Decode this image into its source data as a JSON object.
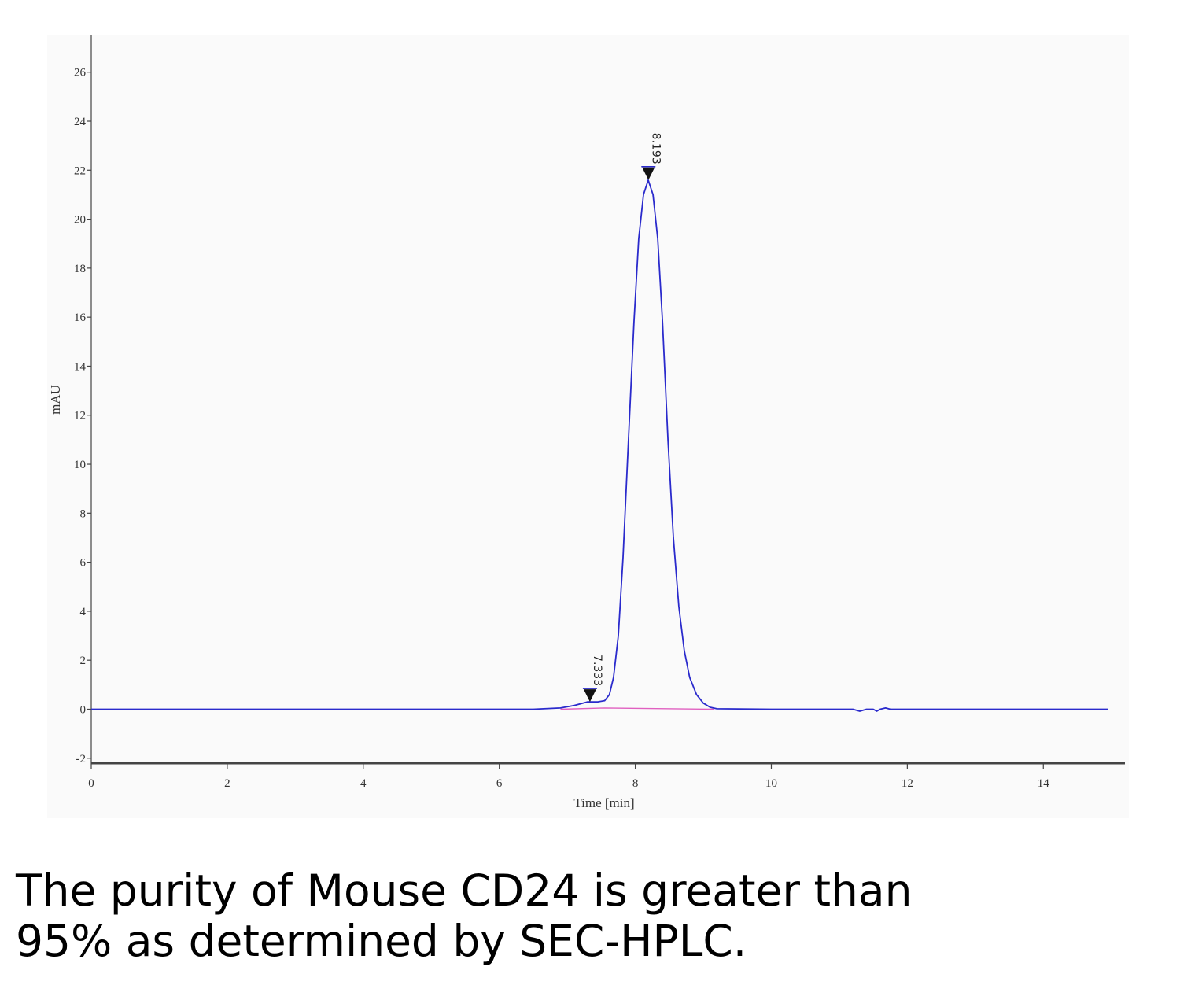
{
  "chart_data": {
    "type": "line",
    "xlabel": "Time [min]",
    "ylabel": "mAU",
    "xlim": [
      0,
      15.2
    ],
    "ylim": [
      -2.2,
      27.5
    ],
    "x_ticks": [
      0,
      2,
      4,
      6,
      8,
      10,
      12,
      14
    ],
    "y_ticks": [
      -2,
      0,
      2,
      4,
      6,
      8,
      10,
      12,
      14,
      16,
      18,
      20,
      22,
      24,
      26
    ],
    "grid": false,
    "series": [
      {
        "color": "#2a2acc",
        "x": [
          0,
          5.0,
          6.5,
          6.9,
          7.1,
          7.3,
          7.45,
          7.55,
          7.62,
          7.68,
          7.75,
          7.82,
          7.9,
          7.98,
          8.05,
          8.12,
          8.19,
          8.26,
          8.33,
          8.4,
          8.48,
          8.56,
          8.64,
          8.72,
          8.8,
          8.9,
          9.0,
          9.1,
          9.2,
          10.0,
          11.2,
          11.3,
          11.4,
          11.5,
          11.55,
          11.6,
          11.68,
          11.75,
          11.85,
          14.95
        ],
        "y": [
          0,
          0,
          0,
          0.05,
          0.15,
          0.3,
          0.3,
          0.35,
          0.6,
          1.3,
          3.0,
          6.2,
          11.0,
          15.8,
          19.2,
          21.0,
          21.6,
          21.0,
          19.2,
          15.8,
          11.0,
          7.0,
          4.2,
          2.4,
          1.3,
          0.6,
          0.25,
          0.08,
          0.02,
          0,
          0,
          -0.08,
          0,
          0,
          -0.08,
          0,
          0.05,
          0,
          0,
          0
        ]
      },
      {
        "color": "#e060c0",
        "x": [
          6.9,
          7.55,
          9.15
        ],
        "y": [
          0,
          0.05,
          0
        ]
      }
    ],
    "peaks": [
      {
        "x": 7.333,
        "y": 0.3,
        "label": "7.333"
      },
      {
        "x": 8.193,
        "y": 21.6,
        "label": "8.193"
      }
    ]
  },
  "caption": {
    "line1": "The purity of Mouse CD24 is greater than",
    "line2": "95% as determined by SEC-HPLC."
  }
}
